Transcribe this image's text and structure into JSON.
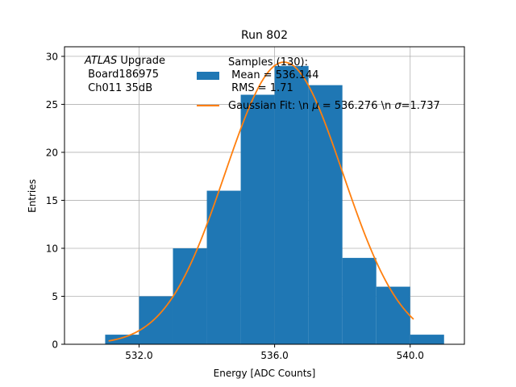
{
  "chart_data": {
    "type": "bar",
    "title": "Run 802",
    "xlabel": "Energy [ADC Counts]",
    "ylabel": "Entries",
    "xlim": [
      529.8,
      541.6
    ],
    "ylim": [
      0,
      31
    ],
    "grid": true,
    "x_ticks": [
      532,
      536,
      540
    ],
    "x_tick_labels": [
      "532.0",
      "536.0",
      "540.0"
    ],
    "y_ticks": [
      0,
      5,
      10,
      15,
      20,
      25,
      30
    ],
    "y_tick_labels": [
      "0",
      "5",
      "10",
      "15",
      "20",
      "25",
      "30"
    ],
    "bins": [
      {
        "left": 531,
        "right": 532,
        "count": 1
      },
      {
        "left": 532,
        "right": 533,
        "count": 5
      },
      {
        "left": 533,
        "right": 534,
        "count": 10
      },
      {
        "left": 534,
        "right": 535,
        "count": 16
      },
      {
        "left": 535,
        "right": 536,
        "count": 26
      },
      {
        "left": 536,
        "right": 537,
        "count": 29
      },
      {
        "left": 537,
        "right": 538,
        "count": 27
      },
      {
        "left": 538,
        "right": 539,
        "count": 9
      },
      {
        "left": 539,
        "right": 540,
        "count": 6
      },
      {
        "left": 540,
        "right": 541,
        "count": 1
      }
    ],
    "fit": {
      "mu": 536.276,
      "sigma": 1.737,
      "amplitude": 29.4,
      "x_start": 531.1,
      "x_end": 540.1
    },
    "annotation": {
      "line1_italic": "ATLAS",
      "line1_rest": " Upgrade",
      "line2": " Board186975",
      "line3": " Ch011 35dB"
    },
    "legend": {
      "location": "upper-center",
      "hist_line1": "Samples (130):",
      "hist_line2": " Mean = 536.144",
      "hist_line3": " RMS = 1.71",
      "fit_label_a": "Gaussian Fit: \\n ",
      "fit_mu_symbol": "μ",
      "fit_label_b": " = 536.276 \\n ",
      "fit_sigma_symbol": "σ",
      "fit_label_c": "=1.737"
    },
    "colors": {
      "hist": "#1f77b4",
      "fit": "#ff7f0e",
      "grid": "#b0b0b0"
    }
  }
}
